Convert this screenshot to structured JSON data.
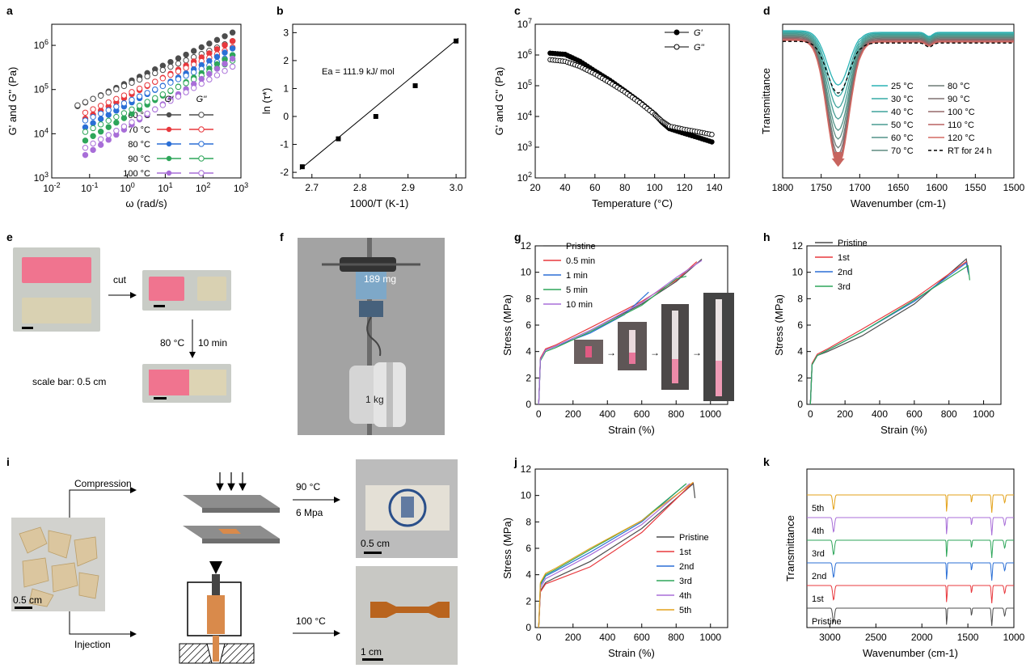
{
  "figure": {
    "panel_labels": [
      "a",
      "b",
      "c",
      "d",
      "e",
      "f",
      "g",
      "h",
      "i",
      "j",
      "k"
    ]
  },
  "panel_e": {
    "cut_label": "cut",
    "condition_temp": "80 °C",
    "condition_time": "10 min",
    "scale_note": "scale bar: 0.5 cm"
  },
  "panel_f": {
    "mass_top": "189 mg",
    "mass_bottom": "1 kg"
  },
  "panel_i": {
    "route_top": "Compression",
    "route_bottom": "Injection",
    "top_temp": "90 °C",
    "top_pressure": "6 Mpa",
    "bottom_temp": "100 °C",
    "scale_pieces": "0.5 cm",
    "scale_film": "0.5 cm",
    "scale_bar": "1 cm"
  },
  "chart_data": [
    {
      "panel": "a",
      "type": "scatter",
      "xlabel": "ω (rad/s)",
      "ylabel": "G' and G'' (Pa)",
      "xscale": "log",
      "yscale": "log",
      "xlim": [
        0.01,
        1000
      ],
      "ylim": [
        1000,
        3000000
      ],
      "xticks": [
        "10-2",
        "10-1",
        "100",
        "101",
        "102",
        "103"
      ],
      "yticks": [
        "103",
        "104",
        "105",
        "106"
      ],
      "legend_headers": [
        "G'",
        "G''"
      ],
      "series": [
        {
          "name": "60 °C",
          "color": "#4d4d4d",
          "gp_range": [
            42000,
            1950000
          ],
          "gpp_range": [
            44000,
            1250000
          ]
        },
        {
          "name": "70 °C",
          "color": "#e8383d",
          "gp_range": [
            22000,
            1250000
          ],
          "gpp_range": [
            30000,
            900000
          ]
        },
        {
          "name": "80 °C",
          "color": "#2b6fd6",
          "gp_range": [
            14000,
            850000
          ],
          "gpp_range": [
            20000,
            600000
          ]
        },
        {
          "name": "90 °C",
          "color": "#2ea65a",
          "gp_range": [
            7000,
            600000
          ],
          "gpp_range": [
            11000,
            450000
          ]
        },
        {
          "name": "100 °C",
          "color": "#a86ed8",
          "gp_range": [
            3300,
            500000
          ],
          "gpp_range": [
            4800,
            330000
          ]
        }
      ]
    },
    {
      "panel": "b",
      "type": "scatter",
      "xlabel": "1000/T (K-1)",
      "ylabel": "ln (τ*)",
      "xlim": [
        2.66,
        3.02
      ],
      "ylim": [
        -2.2,
        3.3
      ],
      "xticks": [
        "2.7",
        "2.8",
        "2.9",
        "3.0"
      ],
      "yticks": [
        "-2",
        "-1",
        "0",
        "1",
        "2",
        "3"
      ],
      "x": [
        2.68,
        2.755,
        2.833,
        2.915,
        3.0
      ],
      "y": [
        -1.8,
        -0.8,
        0.0,
        1.1,
        2.7
      ],
      "fit": {
        "x": [
          2.675,
          3.005
        ],
        "y": [
          -1.9,
          2.8
        ]
      },
      "annotation": "Ea = 111.9 kJ/ mol"
    },
    {
      "panel": "c",
      "type": "scatter",
      "xlabel": "Temperature (°C)",
      "ylabel": "G' and G'' (Pa)",
      "yscale": "log",
      "xlim": [
        20,
        150
      ],
      "ylim": [
        100,
        10000000
      ],
      "xticks": [
        "20",
        "40",
        "60",
        "80",
        "100",
        "120",
        "140"
      ],
      "yticks": [
        "102",
        "103",
        "104",
        "105",
        "106",
        "107"
      ],
      "series": [
        {
          "name": "G'",
          "marker": "filled",
          "x": [
            30,
            40,
            50,
            60,
            70,
            80,
            90,
            100,
            105,
            110,
            120,
            130,
            140
          ],
          "y": [
            1150000,
            1050000,
            620000,
            300000,
            150000,
            68000,
            30000,
            12000,
            6500,
            4000,
            2800,
            2000,
            1400
          ]
        },
        {
          "name": "G''",
          "marker": "open",
          "x": [
            30,
            40,
            50,
            60,
            70,
            80,
            90,
            100,
            105,
            110,
            120,
            130,
            140
          ],
          "y": [
            700000,
            620000,
            420000,
            240000,
            125000,
            62000,
            28000,
            11500,
            7000,
            4800,
            3800,
            3100,
            2500
          ]
        }
      ]
    },
    {
      "panel": "d",
      "type": "line",
      "xlabel": "Wavenumber (cm-1)",
      "ylabel": "Transmittance",
      "xlim": [
        1800,
        1500
      ],
      "xticks": [
        "1800",
        "1750",
        "1700",
        "1650",
        "1600",
        "1550",
        "1500"
      ],
      "series": [
        {
          "name": "25 °C",
          "color": "#2ab3b6",
          "depth": 0.42
        },
        {
          "name": "30 °C",
          "color": "#37aaa6",
          "depth": 0.5
        },
        {
          "name": "40 °C",
          "color": "#3fa39c",
          "depth": 0.58
        },
        {
          "name": "50 °C",
          "color": "#489b92",
          "depth": 0.66
        },
        {
          "name": "60 °C",
          "color": "#539388",
          "depth": 0.74
        },
        {
          "name": "70 °C",
          "color": "#5e8c80",
          "depth": 0.8
        },
        {
          "name": "80 °C",
          "color": "#6d7a77",
          "depth": 0.86
        },
        {
          "name": "90 °C",
          "color": "#7e7070",
          "depth": 0.9
        },
        {
          "name": "100 °C",
          "color": "#96686a",
          "depth": 0.93
        },
        {
          "name": "110 °C",
          "color": "#b96060",
          "depth": 0.95
        },
        {
          "name": "120 °C",
          "color": "#d46a62",
          "depth": 0.97
        },
        {
          "name": "RT for 24 h",
          "color": "#000000",
          "depth": 0.4,
          "dashed": true
        }
      ]
    },
    {
      "panel": "g",
      "type": "line",
      "xlabel": "Strain (%)",
      "ylabel": "Stress (MPa)",
      "xlim": [
        -20,
        1100
      ],
      "ylim": [
        0,
        12
      ],
      "xticks": [
        "0",
        "200",
        "400",
        "600",
        "800",
        "1000"
      ],
      "yticks": [
        "0",
        "2",
        "4",
        "6",
        "8",
        "10",
        "12"
      ],
      "series": [
        {
          "name": "Pristine",
          "color": "#4d4d4d",
          "x": [
            0,
            10,
            40,
            100,
            300,
            600,
            800,
            950
          ],
          "y": [
            0,
            3.4,
            4.1,
            4.4,
            5.6,
            7.6,
            9.3,
            11.0
          ]
        },
        {
          "name": "0.5 min",
          "color": "#e8383d",
          "x": [
            0,
            10,
            40,
            100,
            300,
            600,
            800,
            920
          ],
          "y": [
            0,
            3.5,
            4.2,
            4.5,
            5.8,
            7.8,
            9.4,
            10.8
          ]
        },
        {
          "name": "1 min",
          "color": "#2b6fd6",
          "x": [
            0,
            10,
            40,
            100,
            300,
            500,
            640
          ],
          "y": [
            0,
            3.4,
            4.1,
            4.4,
            5.4,
            6.8,
            8.5
          ]
        },
        {
          "name": "5 min",
          "color": "#2ea65a",
          "x": [
            0,
            10,
            40,
            100,
            300,
            600,
            800,
            860
          ],
          "y": [
            0,
            3.3,
            4.0,
            4.3,
            5.5,
            7.5,
            9.5,
            9.7
          ]
        },
        {
          "name": "10 min",
          "color": "#a86ed8",
          "x": [
            0,
            10,
            40,
            100,
            300,
            600,
            800,
            950
          ],
          "y": [
            0,
            3.4,
            4.1,
            4.4,
            5.6,
            7.7,
            9.6,
            10.9
          ]
        }
      ]
    },
    {
      "panel": "h",
      "type": "line",
      "xlabel": "Strain (%)",
      "ylabel": "Stress (MPa)",
      "xlim": [
        -20,
        1100
      ],
      "ylim": [
        0,
        12
      ],
      "xticks": [
        "0",
        "200",
        "400",
        "600",
        "800",
        "1000"
      ],
      "yticks": [
        "0",
        "2",
        "4",
        "6",
        "8",
        "10",
        "12"
      ],
      "series": [
        {
          "name": "Pristine",
          "color": "#4d4d4d",
          "x": [
            0,
            10,
            40,
            100,
            300,
            600,
            900,
            910
          ],
          "y": [
            0,
            3.0,
            3.7,
            4.0,
            5.2,
            7.6,
            11.0,
            10.2
          ]
        },
        {
          "name": "1st",
          "color": "#e8383d",
          "x": [
            0,
            10,
            40,
            100,
            300,
            600,
            900,
            910
          ],
          "y": [
            0,
            3.1,
            3.8,
            4.2,
            5.7,
            8.0,
            10.8,
            10.0
          ]
        },
        {
          "name": "2nd",
          "color": "#2b6fd6",
          "x": [
            0,
            10,
            40,
            100,
            300,
            600,
            900,
            915
          ],
          "y": [
            0,
            3.0,
            3.7,
            4.1,
            5.5,
            7.8,
            10.7,
            9.8
          ]
        },
        {
          "name": "3rd",
          "color": "#2ea65a",
          "x": [
            0,
            10,
            40,
            100,
            300,
            600,
            910,
            920
          ],
          "y": [
            0,
            3.0,
            3.7,
            4.1,
            5.5,
            7.9,
            10.5,
            9.4
          ]
        }
      ]
    },
    {
      "panel": "j",
      "type": "line",
      "xlabel": "Strain (%)",
      "ylabel": "Stress (MPa)",
      "xlim": [
        -20,
        1100
      ],
      "ylim": [
        0,
        12
      ],
      "xticks": [
        "0",
        "200",
        "400",
        "600",
        "800",
        "1000"
      ],
      "yticks": [
        "0",
        "2",
        "4",
        "6",
        "8",
        "10",
        "12"
      ],
      "series": [
        {
          "name": "Pristine",
          "color": "#4d4d4d",
          "x": [
            0,
            10,
            40,
            100,
            300,
            600,
            900,
            910
          ],
          "y": [
            0,
            2.8,
            3.4,
            3.8,
            5.0,
            7.5,
            10.9,
            9.8
          ]
        },
        {
          "name": "1st",
          "color": "#e8383d",
          "x": [
            0,
            10,
            40,
            100,
            300,
            600,
            900
          ],
          "y": [
            0,
            2.7,
            3.3,
            3.6,
            4.6,
            7.2,
            11.0
          ]
        },
        {
          "name": "2nd",
          "color": "#2b6fd6",
          "x": [
            0,
            10,
            40,
            100,
            300,
            600,
            850
          ],
          "y": [
            0,
            3.2,
            3.9,
            4.3,
            5.7,
            8.0,
            10.8
          ]
        },
        {
          "name": "3rd",
          "color": "#2ea65a",
          "x": [
            0,
            10,
            40,
            100,
            300,
            600,
            860
          ],
          "y": [
            0,
            3.3,
            4.0,
            4.4,
            5.9,
            8.1,
            10.9
          ]
        },
        {
          "name": "4th",
          "color": "#a86ed8",
          "x": [
            0,
            10,
            40,
            100,
            300,
            600,
            880
          ],
          "y": [
            0,
            3.0,
            3.7,
            4.1,
            5.5,
            7.8,
            10.9
          ]
        },
        {
          "name": "5th",
          "color": "#e3a21a",
          "x": [
            0,
            10,
            40,
            100,
            300,
            600,
            900
          ],
          "y": [
            0,
            3.4,
            4.1,
            4.5,
            6.0,
            8.1,
            11.0
          ]
        }
      ]
    },
    {
      "panel": "k",
      "type": "line",
      "xlabel": "Wavenumber (cm-1)",
      "ylabel": "Transmittance",
      "xlim": [
        3250,
        1000
      ],
      "xticks": [
        "3000",
        "2500",
        "2000",
        "1500",
        "1000"
      ],
      "series": [
        {
          "name": "Pristine",
          "color": "#4d4d4d"
        },
        {
          "name": "1st",
          "color": "#e8383d"
        },
        {
          "name": "2nd",
          "color": "#2b6fd6"
        },
        {
          "name": "3rd",
          "color": "#2ea65a"
        },
        {
          "name": "4th",
          "color": "#a86ed8"
        },
        {
          "name": "5th",
          "color": "#e3a21a"
        }
      ]
    }
  ]
}
